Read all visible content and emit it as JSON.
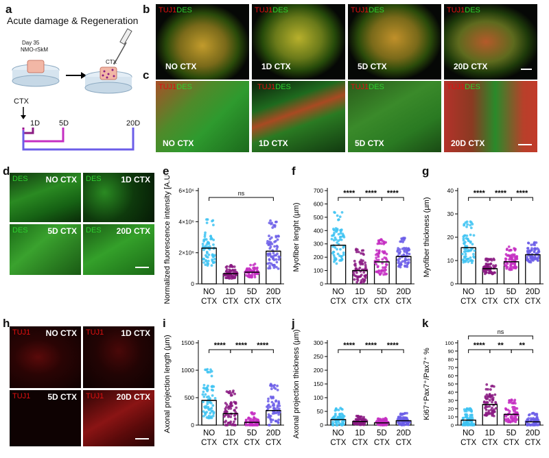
{
  "panel_letters": [
    "a",
    "b",
    "c",
    "d",
    "e",
    "f",
    "g",
    "h",
    "i",
    "j",
    "k"
  ],
  "panel_a": {
    "title": "Acute damage & Regeneration",
    "day_label": "Day 35",
    "model_label": "NMO-rSkM",
    "ctx_label": "CTX",
    "timeline_ctx": "CTX",
    "timeline_points": [
      "1D",
      "5D",
      "20D"
    ]
  },
  "marker_tuj": "TUJ1",
  "marker_des": "DES",
  "conditions": [
    "NO CTX",
    "1D CTX",
    "5D CTX",
    "20D CTX"
  ],
  "x_categories": [
    [
      "NO",
      "CTX"
    ],
    [
      "1D",
      "CTX"
    ],
    [
      "5D",
      "CTX"
    ],
    [
      "20D",
      "CTX"
    ]
  ],
  "colors": {
    "no": "#3ec3f2",
    "d1": "#8a1a82",
    "d5": "#c42ec2",
    "d20": "#6b5de8",
    "tuj": "#e01010",
    "des": "#2ed12e"
  },
  "chart_data": [
    {
      "id": "e",
      "type": "bar",
      "ylabel": "Normalized fluorescence intensity [A.U.]",
      "yticks": [
        "0",
        "2×10⁶",
        "4×10⁶",
        "6×10⁶"
      ],
      "ytick_values": [
        0,
        2000000,
        4000000,
        6000000
      ],
      "ylim": [
        0,
        6000000
      ],
      "values": [
        2300000,
        650000,
        750000,
        2100000
      ],
      "spread": [
        2800000,
        800000,
        800000,
        2800000
      ],
      "brackets": [
        {
          "from": 0,
          "to": 3,
          "level": 0,
          "label": "ns"
        }
      ]
    },
    {
      "id": "f",
      "type": "bar",
      "ylabel": "Myofiber lenght (µm)",
      "yticks": [
        "0",
        "100",
        "200",
        "300",
        "400",
        "500",
        "600",
        "700"
      ],
      "ytick_values": [
        0,
        100,
        200,
        300,
        400,
        500,
        600,
        700
      ],
      "ylim": [
        0,
        700
      ],
      "values": [
        290,
        100,
        165,
        205
      ],
      "spread": [
        360,
        230,
        240,
        200
      ],
      "brackets": [
        {
          "from": 0,
          "to": 1,
          "level": 0,
          "label": "****"
        },
        {
          "from": 1,
          "to": 2,
          "level": 0,
          "label": "****"
        },
        {
          "from": 2,
          "to": 3,
          "level": 0,
          "label": "****"
        }
      ]
    },
    {
      "id": "g",
      "type": "bar",
      "ylabel": "Myofiber thickness (µm)",
      "yticks": [
        "0",
        "10",
        "20",
        "30",
        "40"
      ],
      "ytick_values": [
        0,
        10,
        20,
        30,
        40
      ],
      "ylim": [
        0,
        40
      ],
      "values": [
        15.5,
        6.5,
        9.5,
        12.5
      ],
      "spread": [
        16,
        6,
        9,
        8
      ],
      "brackets": [
        {
          "from": 0,
          "to": 1,
          "level": 0,
          "label": "****"
        },
        {
          "from": 1,
          "to": 2,
          "level": 0,
          "label": "****"
        },
        {
          "from": 2,
          "to": 3,
          "level": 0,
          "label": "****"
        }
      ]
    },
    {
      "id": "i",
      "type": "bar",
      "ylabel": "Axonal projection length (µm)",
      "yticks": [
        "0",
        "500",
        "1000",
        "1500"
      ],
      "ytick_values": [
        0,
        500,
        1000,
        1500
      ],
      "ylim": [
        0,
        1500
      ],
      "values": [
        450,
        210,
        50,
        265
      ],
      "spread": [
        800,
        600,
        250,
        700
      ],
      "brackets": [
        {
          "from": 0,
          "to": 1,
          "level": 0,
          "label": "****"
        },
        {
          "from": 1,
          "to": 2,
          "level": 0,
          "label": "****"
        },
        {
          "from": 2,
          "to": 3,
          "level": 0,
          "label": "****"
        }
      ]
    },
    {
      "id": "j",
      "type": "bar",
      "ylabel": "Axonal projection thickness (µm)",
      "yticks": [
        "0",
        "50",
        "100",
        "150",
        "200",
        "250",
        "300"
      ],
      "ytick_values": [
        0,
        50,
        100,
        150,
        200,
        250,
        300
      ],
      "ylim": [
        0,
        300
      ],
      "values": [
        20,
        13,
        8,
        16
      ],
      "spread": [
        60,
        30,
        25,
        40
      ],
      "brackets": [
        {
          "from": 0,
          "to": 1,
          "level": 0,
          "label": "****"
        },
        {
          "from": 1,
          "to": 2,
          "level": 0,
          "label": "****"
        },
        {
          "from": 2,
          "to": 3,
          "level": 0,
          "label": "****"
        }
      ]
    },
    {
      "id": "k",
      "type": "bar",
      "ylabel": "Ki67⁺Pax7⁺/Pax7⁺ %",
      "yticks": [
        "0",
        "10",
        "20",
        "30",
        "40",
        "50",
        "60",
        "70",
        "80",
        "90",
        "100"
      ],
      "ytick_values": [
        0,
        10,
        20,
        30,
        40,
        50,
        60,
        70,
        80,
        90,
        100
      ],
      "ylim": [
        0,
        100
      ],
      "values": [
        6,
        25,
        13,
        4
      ],
      "spread": [
        20,
        35,
        25,
        15
      ],
      "brackets": [
        {
          "from": 0,
          "to": 3,
          "level": 2,
          "label": "ns"
        },
        {
          "from": 0,
          "to": 1,
          "level": 0,
          "label": "****"
        },
        {
          "from": 1,
          "to": 2,
          "level": 0,
          "label": "**"
        },
        {
          "from": 2,
          "to": 3,
          "level": 0,
          "label": "**"
        }
      ]
    }
  ]
}
